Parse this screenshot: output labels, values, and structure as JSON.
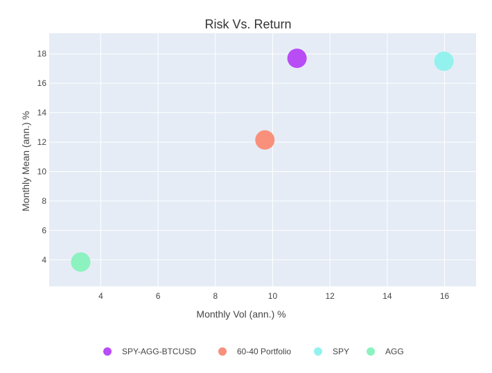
{
  "chart_data": {
    "type": "scatter",
    "title": "Risk Vs. Return",
    "xlabel": "Monthly Vol (ann.) %",
    "ylabel": "Monthly Mean (ann.) %",
    "xlim": [
      2.2,
      17.1
    ],
    "ylim": [
      2.2,
      19.4
    ],
    "xticks": [
      4,
      6,
      8,
      10,
      12,
      14,
      16
    ],
    "yticks": [
      4,
      6,
      8,
      10,
      12,
      14,
      16,
      18
    ],
    "grid": true,
    "legend_position": "bottom",
    "series": [
      {
        "name": "SPY-AGG-BTCUSD",
        "color": "#B84CF5",
        "x": [
          10.85
        ],
        "y": [
          17.7
        ]
      },
      {
        "name": "60-40 Portfolio",
        "color": "#F9907C",
        "x": [
          9.73
        ],
        "y": [
          12.15
        ]
      },
      {
        "name": "SPY",
        "color": "#93F2EE",
        "x": [
          15.98
        ],
        "y": [
          17.5
        ]
      },
      {
        "name": "AGG",
        "color": "#8CF2BF",
        "x": [
          3.3
        ],
        "y": [
          3.85
        ]
      }
    ]
  }
}
